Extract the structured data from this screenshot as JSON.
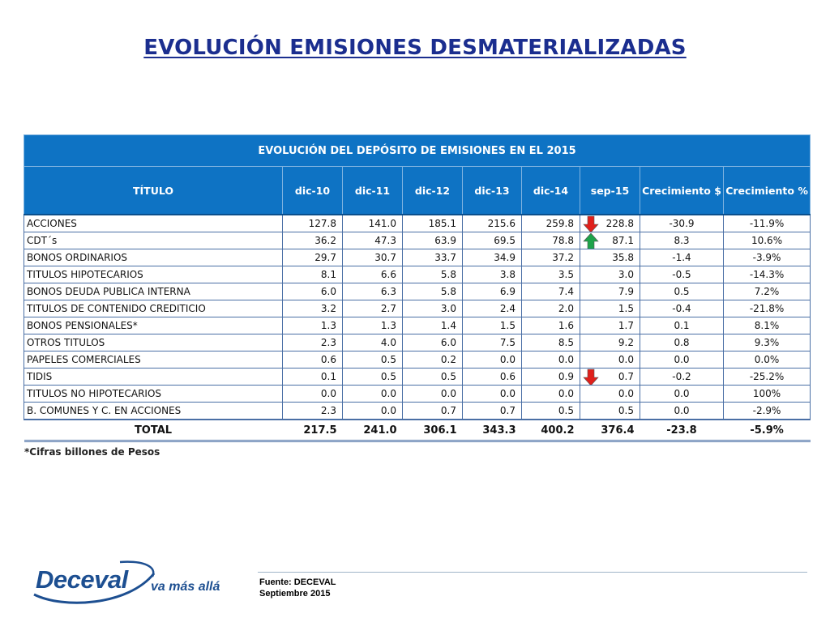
{
  "slide": {
    "title": "EVOLUCIÓN EMISIONES DESMATERIALIZADAS"
  },
  "table": {
    "caption": "EVOLUCIÓN DEL DEPÓSITO DE EMISIONES EN EL 2015",
    "headers": [
      "TÍTULO",
      "dic-10",
      "dic-11",
      "dic-12",
      "dic-13",
      "dic-14",
      "sep-15",
      "Crecimiento $",
      "Crecimiento %"
    ],
    "rows": [
      {
        "name": "ACCIONES",
        "values": [
          "127.8",
          "141.0",
          "185.1",
          "215.6",
          "259.8",
          "228.8"
        ],
        "growth_abs": "-30.9",
        "growth_pct": "-11.9%",
        "trend": "down"
      },
      {
        "name": "CDT´s",
        "values": [
          "36.2",
          "47.3",
          "63.9",
          "69.5",
          "78.8",
          "87.1"
        ],
        "growth_abs": "8.3",
        "growth_pct": "10.6%",
        "trend": "up"
      },
      {
        "name": "BONOS ORDINARIOS",
        "values": [
          "29.7",
          "30.7",
          "33.7",
          "34.9",
          "37.2",
          "35.8"
        ],
        "growth_abs": "-1.4",
        "growth_pct": "-3.9%",
        "trend": ""
      },
      {
        "name": "TITULOS HIPOTECARIOS",
        "values": [
          "8.1",
          "6.6",
          "5.8",
          "3.8",
          "3.5",
          "3.0"
        ],
        "growth_abs": "-0.5",
        "growth_pct": "-14.3%",
        "trend": ""
      },
      {
        "name": "BONOS DEUDA PUBLICA INTERNA",
        "values": [
          "6.0",
          "6.3",
          "5.8",
          "6.9",
          "7.4",
          "7.9"
        ],
        "growth_abs": "0.5",
        "growth_pct": "7.2%",
        "trend": ""
      },
      {
        "name": "TITULOS DE CONTENIDO CREDITICIO",
        "values": [
          "3.2",
          "2.7",
          "3.0",
          "2.4",
          "2.0",
          "1.5"
        ],
        "growth_abs": "-0.4",
        "growth_pct": "-21.8%",
        "trend": ""
      },
      {
        "name": "BONOS PENSIONALES*",
        "values": [
          "1.3",
          "1.3",
          "1.4",
          "1.5",
          "1.6",
          "1.7"
        ],
        "growth_abs": "0.1",
        "growth_pct": "8.1%",
        "trend": ""
      },
      {
        "name": "OTROS TITULOS",
        "values": [
          "2.3",
          "4.0",
          "6.0",
          "7.5",
          "8.5",
          "9.2"
        ],
        "growth_abs": "0.8",
        "growth_pct": "9.3%",
        "trend": ""
      },
      {
        "name": "PAPELES COMERCIALES",
        "values": [
          "0.6",
          "0.5",
          "0.2",
          "0.0",
          "0.0",
          "0.0"
        ],
        "growth_abs": "0.0",
        "growth_pct": "0.0%",
        "trend": ""
      },
      {
        "name": "TIDIS",
        "values": [
          "0.1",
          "0.5",
          "0.5",
          "0.6",
          "0.9",
          "0.7"
        ],
        "growth_abs": "-0.2",
        "growth_pct": "-25.2%",
        "trend": "down"
      },
      {
        "name": "TITULOS NO HIPOTECARIOS",
        "values": [
          "0.0",
          "0.0",
          "0.0",
          "0.0",
          "0.0",
          "0.0"
        ],
        "growth_abs": "0.0",
        "growth_pct": "100%",
        "trend": ""
      },
      {
        "name": "B. COMUNES Y C. EN ACCIONES",
        "values": [
          "2.3",
          "0.0",
          "0.7",
          "0.7",
          "0.5",
          "0.5"
        ],
        "growth_abs": "0.0",
        "growth_pct": "-2.9%",
        "trend": ""
      }
    ],
    "total": {
      "name": "TOTAL",
      "values": [
        "217.5",
        "241.0",
        "306.1",
        "343.3",
        "400.2",
        "376.4"
      ],
      "growth_abs": "-23.8",
      "growth_pct": "-5.9%"
    }
  },
  "note": "*Cifras billones de Pesos",
  "source": {
    "line1": "Fuente: DECEVAL",
    "line2": "Septiembre 2015"
  },
  "logo": {
    "name": "Deceval",
    "tagline": "va más allá"
  },
  "colors": {
    "title": "#1b2e8f",
    "header_bg": "#0e73c4",
    "arrow_down": "#e0201b",
    "arrow_up": "#1ea34a",
    "logo": "#1d4f91"
  }
}
